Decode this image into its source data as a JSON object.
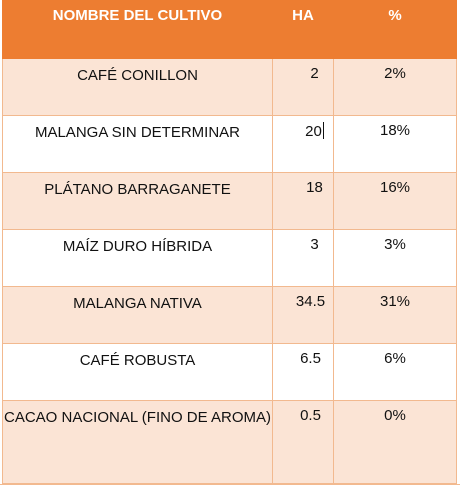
{
  "table": {
    "headers": {
      "name": "NOMBRE DEL CULTIVO",
      "ha": "HA",
      "pct": "%"
    },
    "rows": [
      {
        "name": "CAFÉ CONILLON",
        "ha": "2",
        "pct": "2%"
      },
      {
        "name": "MALANGA SIN DETERMINAR",
        "ha": "20",
        "pct": "18%"
      },
      {
        "name": "PLÁTANO BARRAGANETE",
        "ha": "18",
        "pct": "16%"
      },
      {
        "name": "MAÍZ DURO HÍBRIDA",
        "ha": "3",
        "pct": "3%"
      },
      {
        "name": "MALANGA NATIVA",
        "ha": "34.5",
        "pct": "31%"
      },
      {
        "name": "CAFÉ ROBUSTA",
        "ha": "6.5",
        "pct": "6%"
      },
      {
        "name": "CACAO NACIONAL (FINO DE AROMA)",
        "ha": "0.5",
        "pct": "0%"
      }
    ]
  },
  "colors": {
    "header_bg": "#ed7d31",
    "band_bg": "#fbe4d5",
    "border": "#f2b98f"
  }
}
